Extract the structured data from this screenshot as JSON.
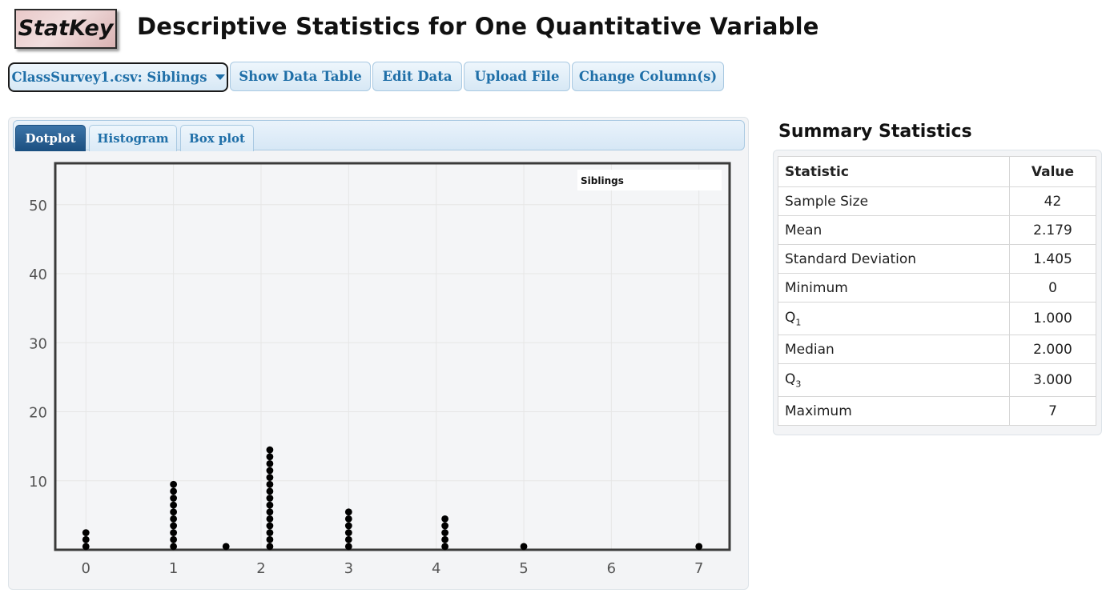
{
  "header": {
    "logo": "StatKey",
    "title": "Descriptive Statistics for One Quantitative Variable"
  },
  "toolbar": {
    "dataset": "ClassSurvey1.csv: Siblings",
    "show_data_table": "Show Data Table",
    "edit_data": "Edit Data",
    "upload_file": "Upload File",
    "change_columns": "Change Column(s)"
  },
  "tabs": [
    {
      "label": "Dotplot",
      "active": true
    },
    {
      "label": "Histogram",
      "active": false
    },
    {
      "label": "Box plot",
      "active": false
    }
  ],
  "chart_data": {
    "type": "scatter",
    "title": "Siblings",
    "xlim": [
      -0.35,
      7.35
    ],
    "ylim": [
      0,
      56
    ],
    "x_ticks": [
      0,
      1,
      2,
      3,
      4,
      5,
      6,
      7
    ],
    "y_ticks": [
      10,
      20,
      30,
      40,
      50
    ],
    "grid": true,
    "legend": "top-right",
    "dot_color": "#000000",
    "points": [
      {
        "x": 0,
        "count": 3
      },
      {
        "x": 1,
        "count": 10
      },
      {
        "x": 1.6,
        "count": 1
      },
      {
        "x": 2.1,
        "count": 15
      },
      {
        "x": 3,
        "count": 6
      },
      {
        "x": 4.1,
        "count": 5
      },
      {
        "x": 5,
        "count": 1
      },
      {
        "x": 7,
        "count": 1
      }
    ]
  },
  "summary": {
    "title": "Summary Statistics",
    "header_statistic": "Statistic",
    "header_value": "Value",
    "rows": [
      {
        "label": "Sample Size",
        "value": "42"
      },
      {
        "label": "Mean",
        "value": "2.179"
      },
      {
        "label": "Standard Deviation",
        "value": "1.405"
      },
      {
        "label": "Minimum",
        "value": "0"
      },
      {
        "label": "Q",
        "sub": "1",
        "value": "1.000"
      },
      {
        "label": "Median",
        "value": "2.000"
      },
      {
        "label": "Q",
        "sub": "3",
        "value": "3.000"
      },
      {
        "label": "Maximum",
        "value": "7"
      }
    ]
  },
  "colors": {
    "accent": "#1f6fa8",
    "active_tab": "#1b4f80"
  }
}
